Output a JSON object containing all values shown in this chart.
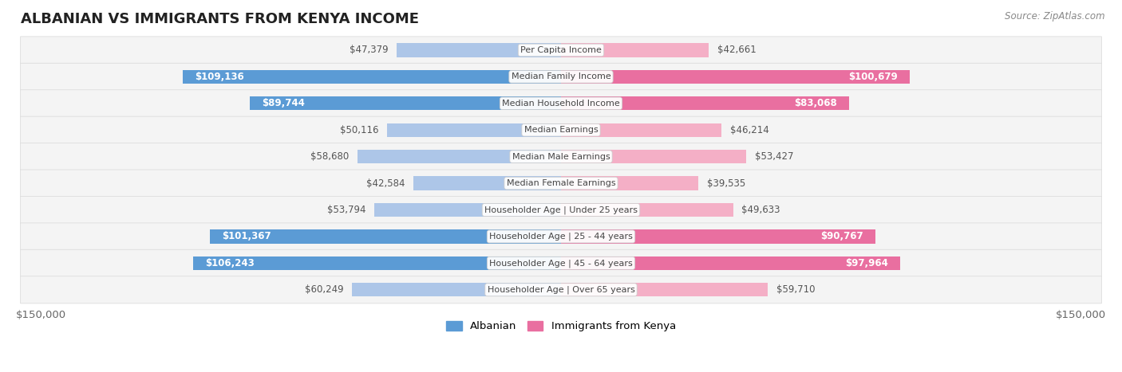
{
  "title": "ALBANIAN VS IMMIGRANTS FROM KENYA INCOME",
  "source": "Source: ZipAtlas.com",
  "categories": [
    "Per Capita Income",
    "Median Family Income",
    "Median Household Income",
    "Median Earnings",
    "Median Male Earnings",
    "Median Female Earnings",
    "Householder Age | Under 25 years",
    "Householder Age | 25 - 44 years",
    "Householder Age | 45 - 64 years",
    "Householder Age | Over 65 years"
  ],
  "albanian_values": [
    47379,
    109136,
    89744,
    50116,
    58680,
    42584,
    53794,
    101367,
    106243,
    60249
  ],
  "kenya_values": [
    42661,
    100679,
    83068,
    46214,
    53427,
    39535,
    49633,
    90767,
    97964,
    59710
  ],
  "albanian_labels": [
    "$47,379",
    "$109,136",
    "$89,744",
    "$50,116",
    "$58,680",
    "$42,584",
    "$53,794",
    "$101,367",
    "$106,243",
    "$60,249"
  ],
  "kenya_labels": [
    "$42,661",
    "$100,679",
    "$83,068",
    "$46,214",
    "$53,427",
    "$39,535",
    "$49,633",
    "$90,767",
    "$97,964",
    "$59,710"
  ],
  "albanian_color_light": "#adc6e8",
  "albanian_color_dark": "#5b9bd5",
  "kenya_color_light": "#f4afc6",
  "kenya_color_dark": "#e96fa0",
  "max_value": 150000,
  "bar_height": 0.52,
  "row_bg_color": "#f4f4f4",
  "row_edge_color": "#dddddd",
  "legend_albanian": "Albanian",
  "legend_kenya": "Immigrants from Kenya",
  "x_tick_label_left": "$150,000",
  "x_tick_label_right": "$150,000",
  "label_threshold": 62000,
  "title_fontsize": 13,
  "label_fontsize": 8.5,
  "cat_fontsize": 8.0,
  "source_fontsize": 8.5
}
